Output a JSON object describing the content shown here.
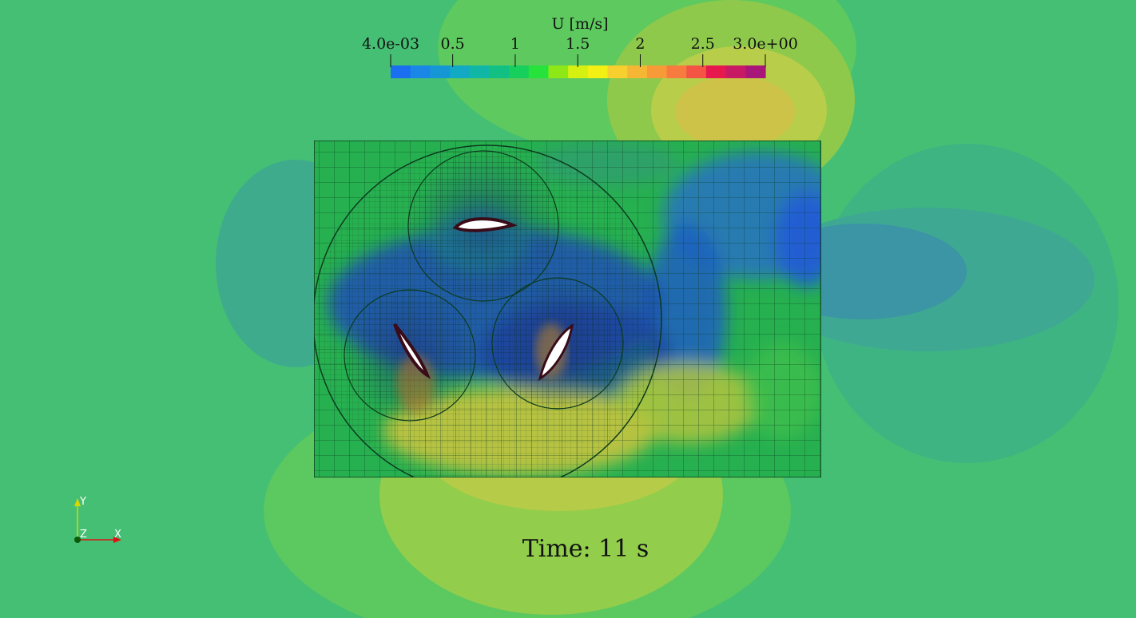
{
  "colorbar": {
    "title": "U [m/s]",
    "min": 0.004,
    "max": 3.0,
    "ticks": [
      {
        "label": "4.0e-03",
        "value": 0.004
      },
      {
        "label": "0.5",
        "value": 0.5
      },
      {
        "label": "1",
        "value": 1.0
      },
      {
        "label": "1.5",
        "value": 1.5
      },
      {
        "label": "2",
        "value": 2.0
      },
      {
        "label": "2.5",
        "value": 2.5
      },
      {
        "label": "3.0e+00",
        "value": 3.0
      }
    ],
    "colors": [
      "#1a6ef0",
      "#1a86e6",
      "#1597d6",
      "#11a9c4",
      "#10b6a6",
      "#12c084",
      "#16cf5c",
      "#28e23c",
      "#8ee818",
      "#d6f012",
      "#f4f014",
      "#f7cf2e",
      "#f6b635",
      "#f79a38",
      "#f77a3e",
      "#f35444",
      "#e6184e",
      "#c81a64",
      "#a8167a"
    ]
  },
  "time_label": "Time: 11 s",
  "axes": {
    "x": "X",
    "y": "Y",
    "z": "Z"
  }
}
